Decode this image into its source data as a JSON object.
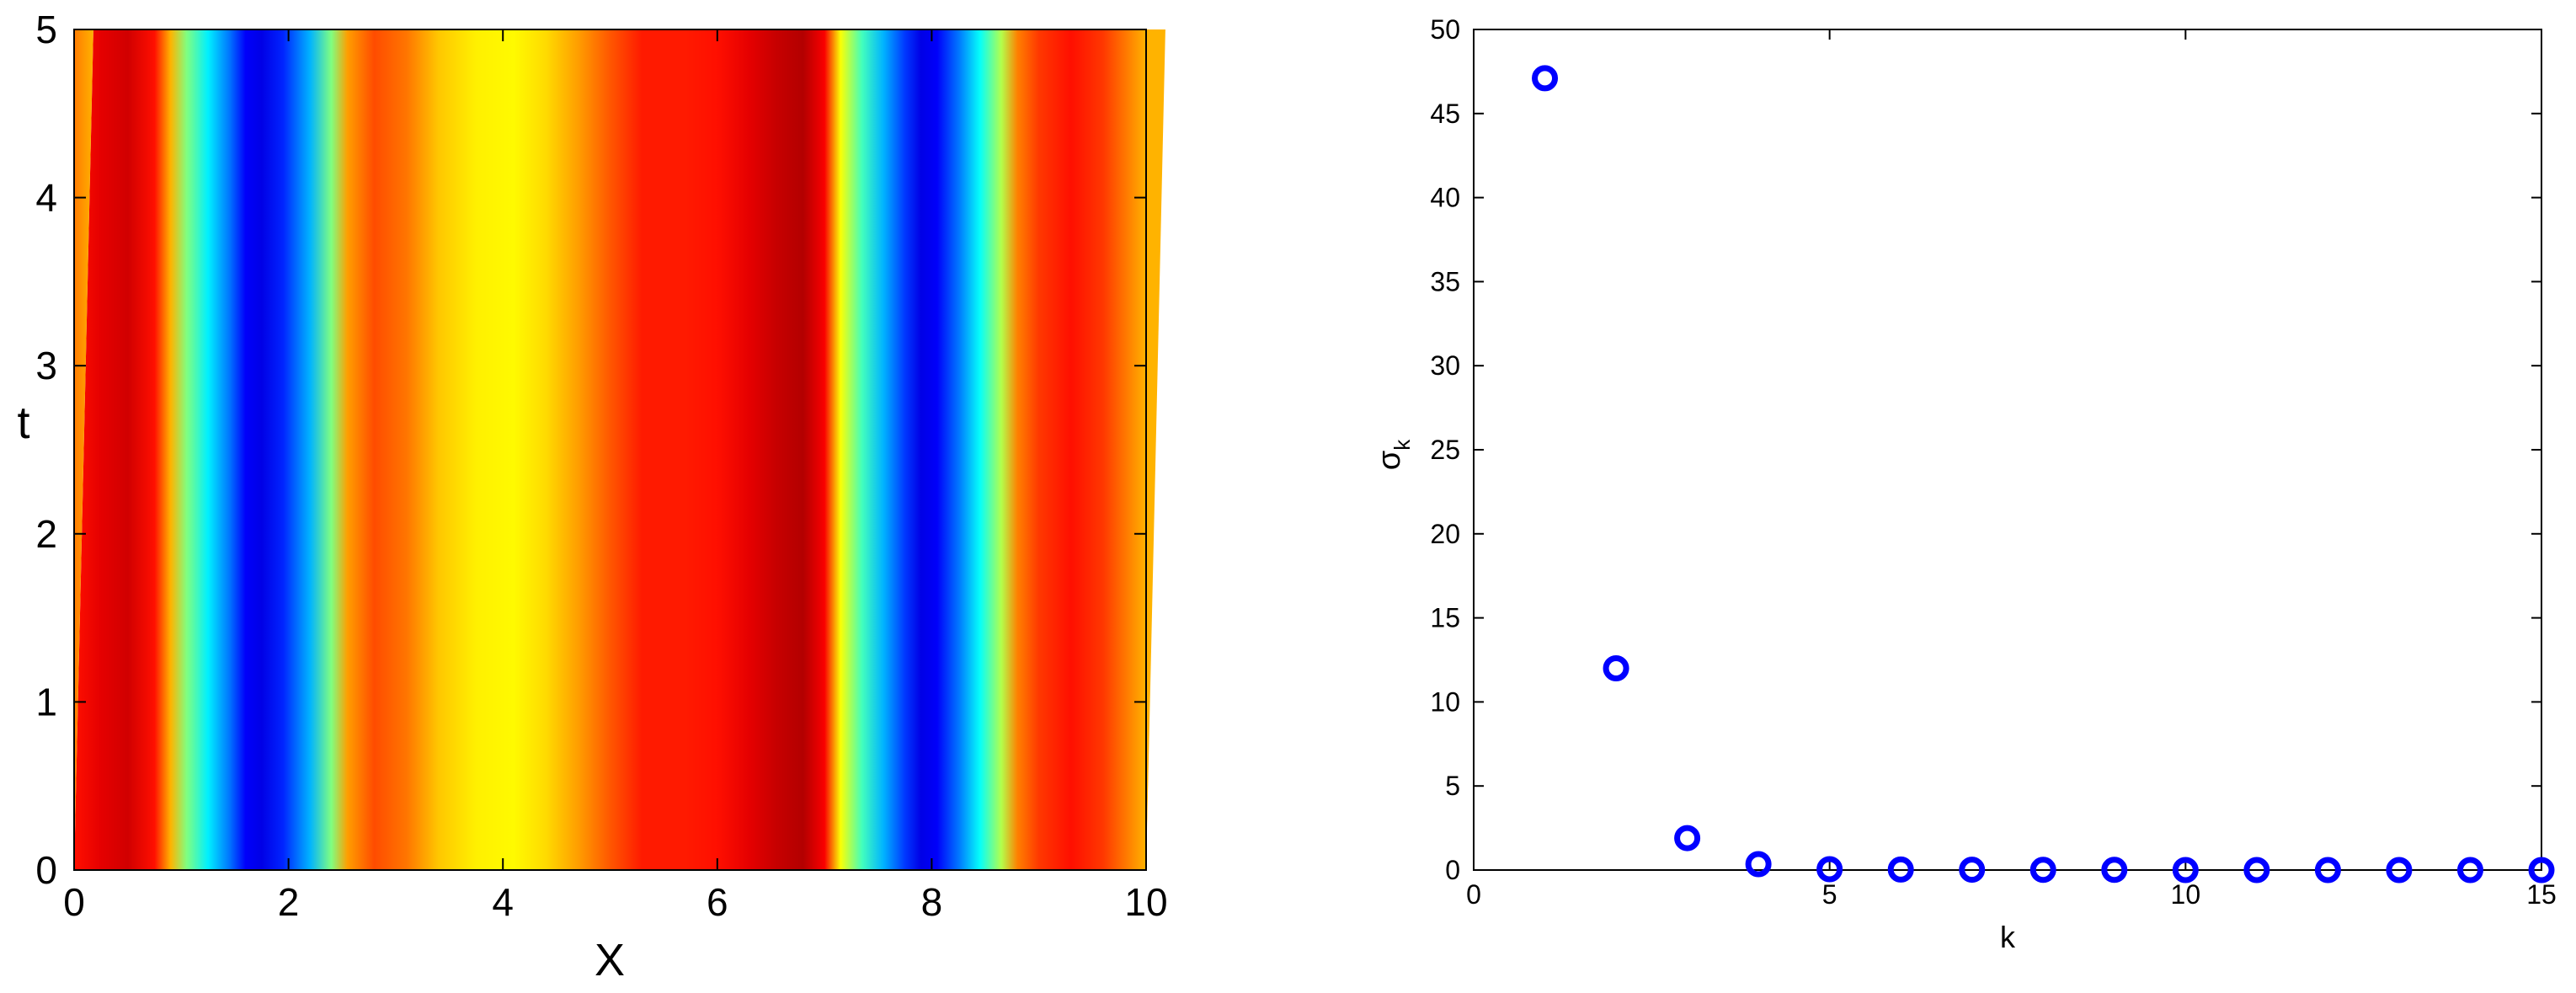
{
  "chart_data": [
    {
      "type": "heatmap",
      "title": "",
      "xlabel": "X",
      "ylabel": "t",
      "xlim": [
        0,
        10
      ],
      "ylim": [
        0,
        5
      ],
      "xticks": [
        "0",
        "2",
        "4",
        "6",
        "8",
        "10"
      ],
      "yticks": [
        "0",
        "1",
        "2",
        "3",
        "4",
        "5"
      ],
      "colormap": "jet",
      "value_range": [
        0,
        1
      ],
      "drift_in_x_from_t0_to_t5": 0.18,
      "field_profile_at_t0": {
        "x": [
          0.0,
          0.25,
          0.5,
          0.75,
          0.9,
          1.05,
          1.25,
          1.45,
          1.6,
          1.75,
          1.95,
          2.2,
          2.4,
          2.55,
          2.8,
          3.1,
          3.4,
          3.75,
          4.1,
          4.4,
          4.7,
          5.0,
          5.3,
          5.7,
          6.0,
          6.3,
          6.55,
          6.8,
          7.0,
          7.15,
          7.35,
          7.55,
          7.75,
          7.9,
          8.05,
          8.25,
          8.45,
          8.65,
          8.8,
          9.0,
          9.3,
          9.6,
          9.8,
          10.0
        ],
        "value": [
          0.86,
          0.9,
          0.92,
          0.86,
          0.7,
          0.5,
          0.36,
          0.24,
          0.12,
          0.1,
          0.16,
          0.3,
          0.5,
          0.72,
          0.8,
          0.76,
          0.68,
          0.64,
          0.63,
          0.66,
          0.72,
          0.79,
          0.85,
          0.85,
          0.86,
          0.9,
          0.93,
          0.95,
          0.88,
          0.62,
          0.44,
          0.3,
          0.18,
          0.1,
          0.12,
          0.24,
          0.38,
          0.55,
          0.75,
          0.82,
          0.86,
          0.82,
          0.76,
          0.7
        ]
      }
    },
    {
      "type": "scatter",
      "title": "",
      "xlabel": "k",
      "ylabel": "σ",
      "ylabel_subscript": "k",
      "xlim": [
        0,
        15
      ],
      "ylim": [
        0,
        50
      ],
      "xticks": [
        "0",
        "5",
        "10",
        "15"
      ],
      "yticks": [
        "0",
        "5",
        "10",
        "15",
        "20",
        "25",
        "30",
        "35",
        "40",
        "45",
        "50"
      ],
      "marker": "circle-open",
      "color": "#0000ff",
      "x": [
        1,
        2,
        3,
        4,
        5,
        6,
        7,
        8,
        9,
        10,
        11,
        12,
        13,
        14,
        15
      ],
      "y": [
        47.1,
        12.0,
        1.9,
        0.35,
        0.05,
        0.03,
        0.02,
        0.01,
        0.01,
        0.0,
        0.0,
        0.0,
        0.0,
        0.0,
        0.0
      ]
    }
  ]
}
